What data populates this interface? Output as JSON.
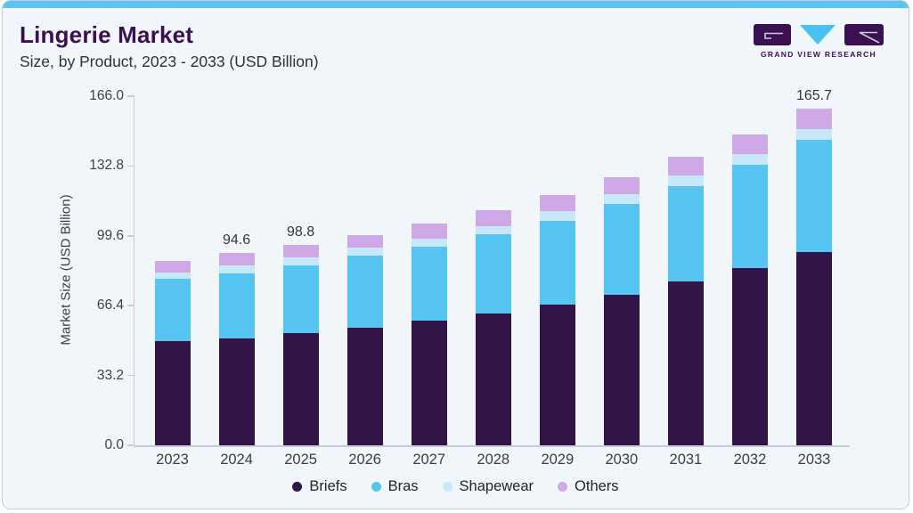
{
  "header": {
    "title": "Lingerie Market",
    "subtitle": "Size, by Product, 2023 - 2033 (USD Billion)",
    "logo_text": "GRAND VIEW RESEARCH"
  },
  "colors": {
    "accent_bar": "#5bc5f1",
    "card_bg": "#f1f6fa",
    "title": "#3b1053",
    "axis_line": "#c8ced6",
    "logo_purple": "#3b1053",
    "logo_triangle_blue": "#49c1f0"
  },
  "chart_data": {
    "type": "bar",
    "stacked": true,
    "title": "Lingerie Market",
    "subtitle": "Size, by Product, 2023 - 2033 (USD Billion)",
    "xlabel": "",
    "ylabel": "Market Size (USD Billion)",
    "legend_position": "bottom",
    "grid": false,
    "ylim": [
      0,
      166
    ],
    "yticks": [
      0.0,
      33.2,
      66.4,
      99.6,
      132.8,
      166.0
    ],
    "ytick_labels": [
      "0.0",
      "33.2",
      "66.4",
      "99.6",
      "132.8",
      "166.0"
    ],
    "categories": [
      "2023",
      "2024",
      "2025",
      "2026",
      "2027",
      "2028",
      "2029",
      "2030",
      "2031",
      "2032",
      "2033"
    ],
    "series": [
      {
        "name": "Briefs",
        "color": "#321448",
        "values": [
          51.3,
          52.8,
          55.4,
          58.1,
          61.6,
          65.0,
          69.4,
          74.3,
          80.9,
          87.1,
          95.2
        ]
      },
      {
        "name": "Bras",
        "color": "#56c5f2",
        "values": [
          30.6,
          31.9,
          33.1,
          35.1,
          36.1,
          39.1,
          41.2,
          44.4,
          46.6,
          51.0,
          55.1
        ]
      },
      {
        "name": "Shapewear",
        "color": "#c7e8fa",
        "values": [
          3.4,
          3.8,
          4.0,
          4.0,
          4.1,
          4.0,
          4.8,
          4.9,
          5.2,
          5.5,
          5.5
        ]
      },
      {
        "name": "Others",
        "color": "#cfa8e8",
        "values": [
          5.4,
          6.1,
          6.3,
          6.3,
          7.3,
          7.5,
          7.7,
          8.2,
          9.2,
          9.5,
          9.9
        ]
      }
    ],
    "totals": [
      90.7,
      94.6,
      98.8,
      103.5,
      109.1,
      115.6,
      123.1,
      131.8,
      141.9,
      153.1,
      165.7
    ],
    "bar_labels": [
      "",
      "94.6",
      "98.8",
      "",
      "",
      "",
      "",
      "",
      "",
      "",
      "165.7"
    ]
  }
}
